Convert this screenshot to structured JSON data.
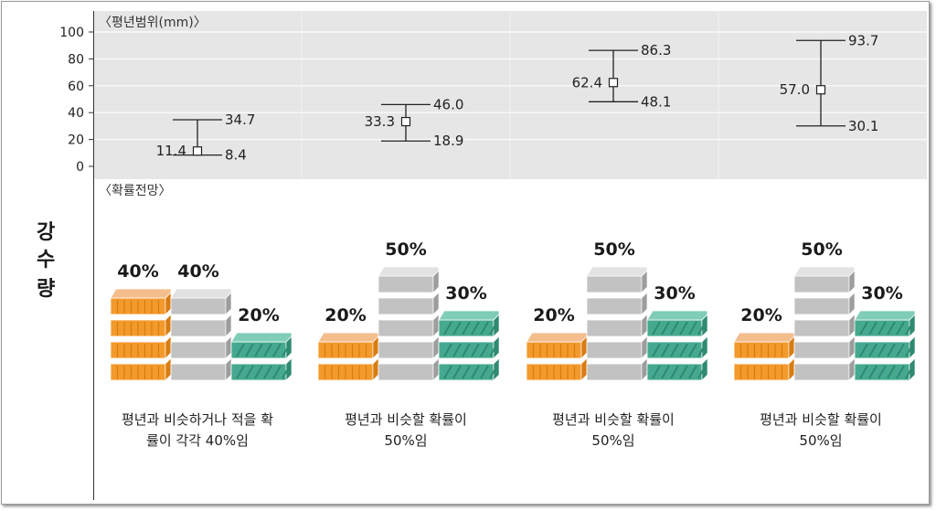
{
  "range_title": "〈평년범위(mm)〉",
  "prob_title": "〈확률전망〉",
  "y_axis_label": [
    "강",
    "수",
    "량"
  ],
  "chart_data": {
    "type": "errorbar",
    "title": "〈평년범위(mm)〉",
    "ylim": [
      0,
      100
    ],
    "yticks": [
      0,
      20,
      40,
      60,
      80,
      100
    ],
    "grid": true,
    "series": [
      {
        "mean": 11.4,
        "lower": 8.4,
        "upper": 34.7
      },
      {
        "mean": 33.3,
        "lower": 18.9,
        "upper": 46.0
      },
      {
        "mean": 62.4,
        "lower": 48.1,
        "upper": 86.3
      },
      {
        "mean": 57.0,
        "lower": 30.1,
        "upper": 93.7
      }
    ]
  },
  "forecasts": [
    {
      "below": "40%",
      "normal": "40%",
      "above": "20%",
      "below_v": 40,
      "normal_v": 40,
      "above_v": 20,
      "caption": [
        "평년과 비슷하거나 적을 확",
        "률이 각각 40%임"
      ]
    },
    {
      "below": "20%",
      "normal": "50%",
      "above": "30%",
      "below_v": 20,
      "normal_v": 50,
      "above_v": 30,
      "caption": [
        "평년과 비슷할 확률이",
        "50%임"
      ]
    },
    {
      "below": "20%",
      "normal": "50%",
      "above": "30%",
      "below_v": 20,
      "normal_v": 50,
      "above_v": 30,
      "caption": [
        "평년과 비슷할 확률이",
        "50%임"
      ]
    },
    {
      "below": "20%",
      "normal": "50%",
      "above": "30%",
      "below_v": 20,
      "normal_v": 50,
      "above_v": 30,
      "caption": [
        "평년과 비슷할 확률이",
        "50%임"
      ]
    }
  ],
  "colors": {
    "panel_bg": "#e6e6e6",
    "below_top": "#f4be8c",
    "below_body": "#f39a2c",
    "below_stripe": "#d97c10",
    "normal_top": "#e2e2e2",
    "normal_body": "#c2c2c2",
    "normal_side": "#9d9d9d",
    "above_top": "#7fcdb7",
    "above_body": "#45a98f",
    "above_stripe": "#2e8a71"
  }
}
